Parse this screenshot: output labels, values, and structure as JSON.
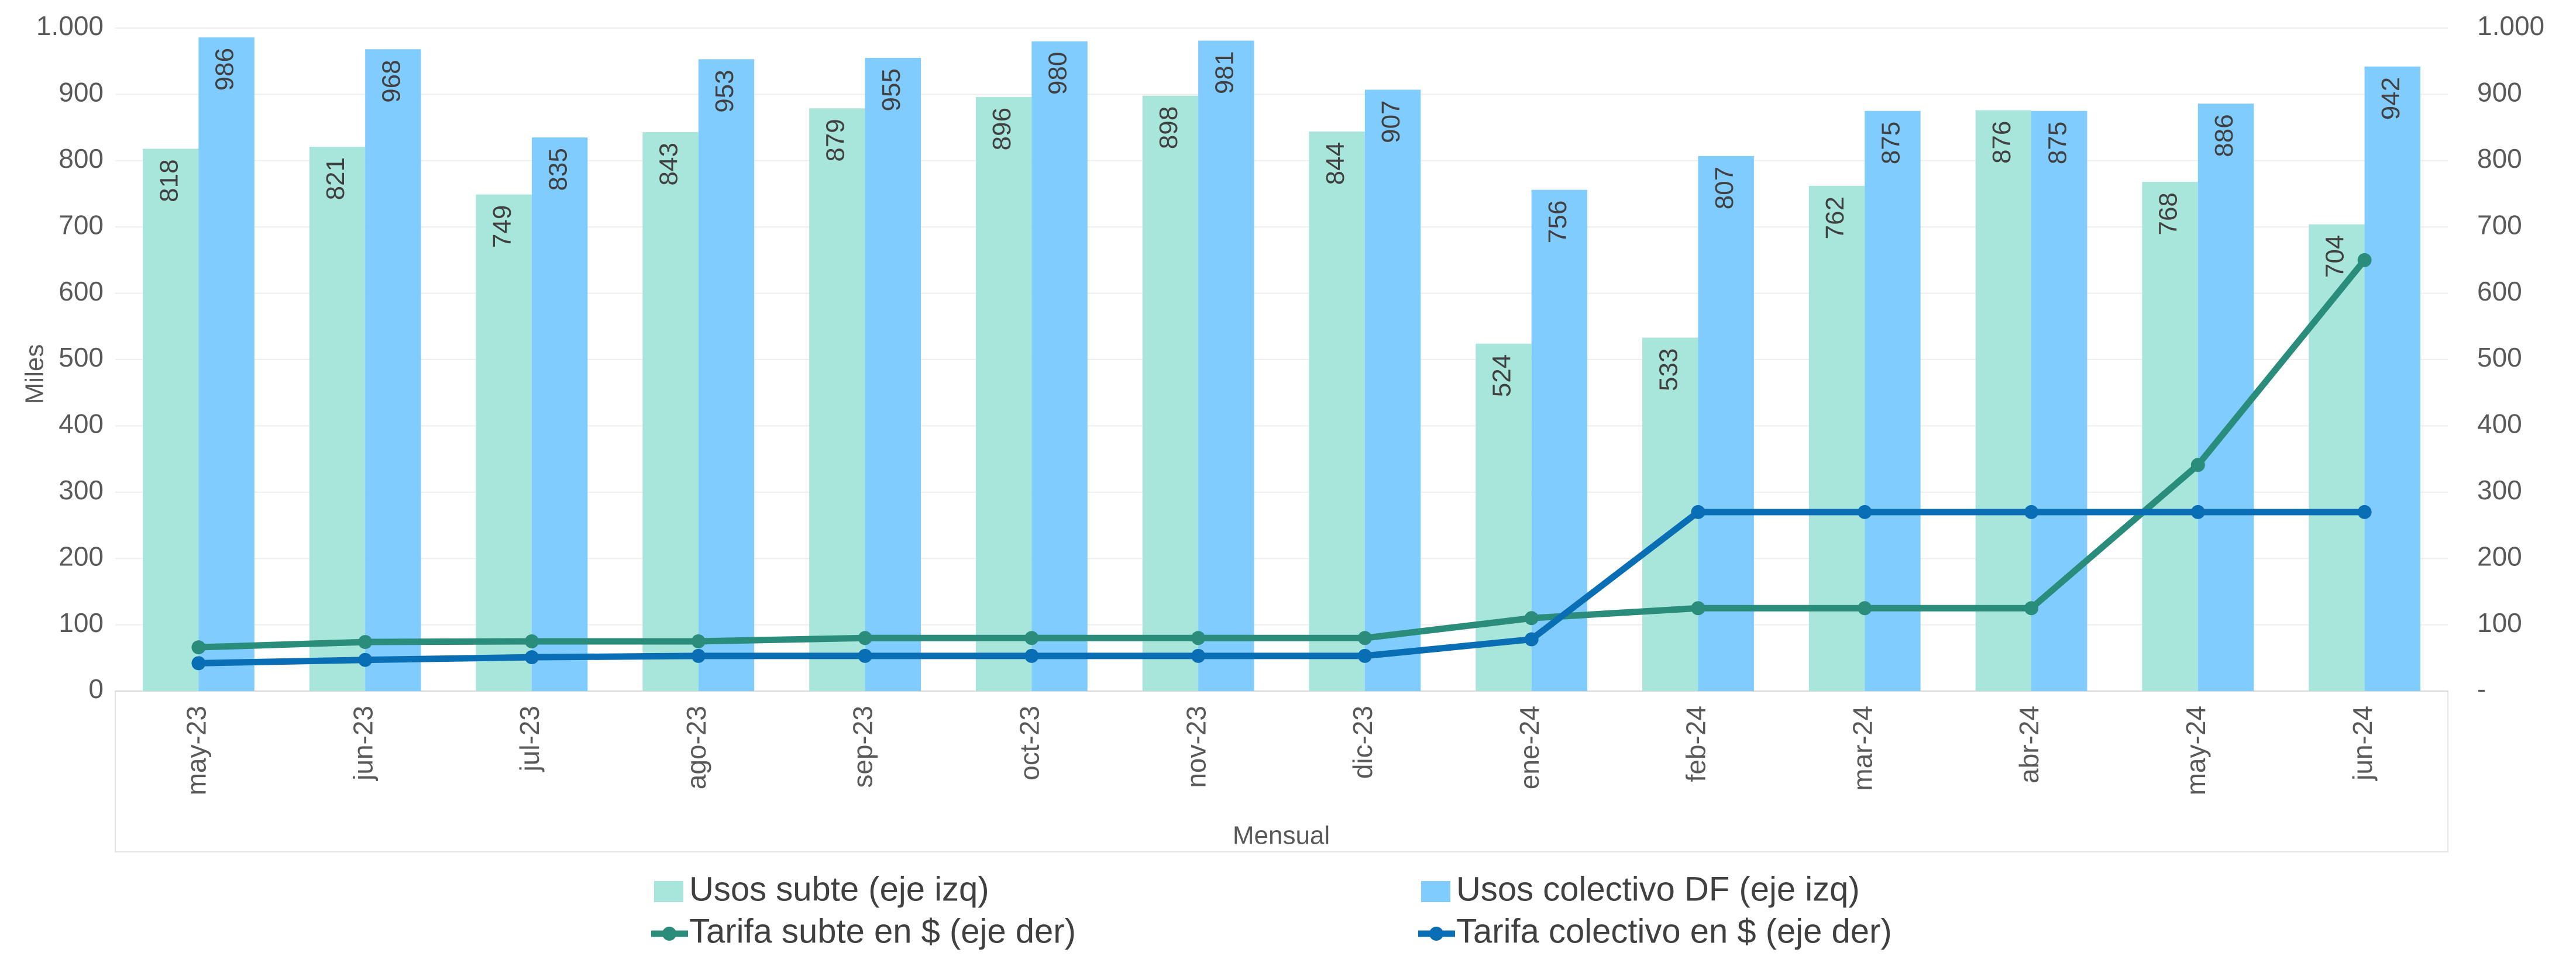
{
  "chart_data": {
    "type": "bar-line",
    "y_label": "Miles",
    "x_label": "Mensual",
    "categories": [
      "may-23",
      "jun-23",
      "jul-23",
      "ago-23",
      "sep-23",
      "oct-23",
      "nov-23",
      "dic-23",
      "ene-24",
      "feb-24",
      "mar-24",
      "abr-24",
      "may-24",
      "jun-24"
    ],
    "series": [
      {
        "name": "Usos subte (eje izq)",
        "color": "#a8e6dc",
        "kind": "bar",
        "values": [
          818,
          821,
          749,
          843,
          879,
          896,
          898,
          844,
          524,
          533,
          762,
          876,
          768,
          704
        ]
      },
      {
        "name": "Usos colectivo DF (eje izq)",
        "color": "#80ccff",
        "kind": "bar",
        "values": [
          986,
          968,
          835,
          953,
          955,
          980,
          981,
          907,
          756,
          807,
          875,
          875,
          886,
          942
        ]
      },
      {
        "name": "Tarifa subte en $ (eje der)",
        "color": "#2a8c7a",
        "kind": "line",
        "axis": "y2",
        "values": [
          66,
          74,
          75,
          75,
          80,
          80,
          80,
          80,
          110,
          125,
          125,
          125,
          341,
          650
        ]
      },
      {
        "name": "Tarifa colectivo en $ (eje der)",
        "color": "#0a6eb4",
        "kind": "line",
        "axis": "y2",
        "values": [
          42,
          47,
          51,
          53,
          53,
          53,
          53,
          53,
          78,
          270,
          270,
          270,
          270,
          270
        ]
      }
    ],
    "ylim": [
      0,
      1000
    ],
    "yticks": [
      0,
      100,
      200,
      300,
      400,
      500,
      600,
      700,
      800,
      900,
      {
        "value": 1000,
        "label": "1.000"
      }
    ],
    "y2lim": [
      0,
      1000
    ],
    "y2ticks": [
      {
        "value": 0,
        "label": "-"
      },
      100,
      200,
      300,
      400,
      500,
      600,
      700,
      800,
      900,
      {
        "value": 1000,
        "label": "1.000"
      }
    ],
    "grid": true
  }
}
